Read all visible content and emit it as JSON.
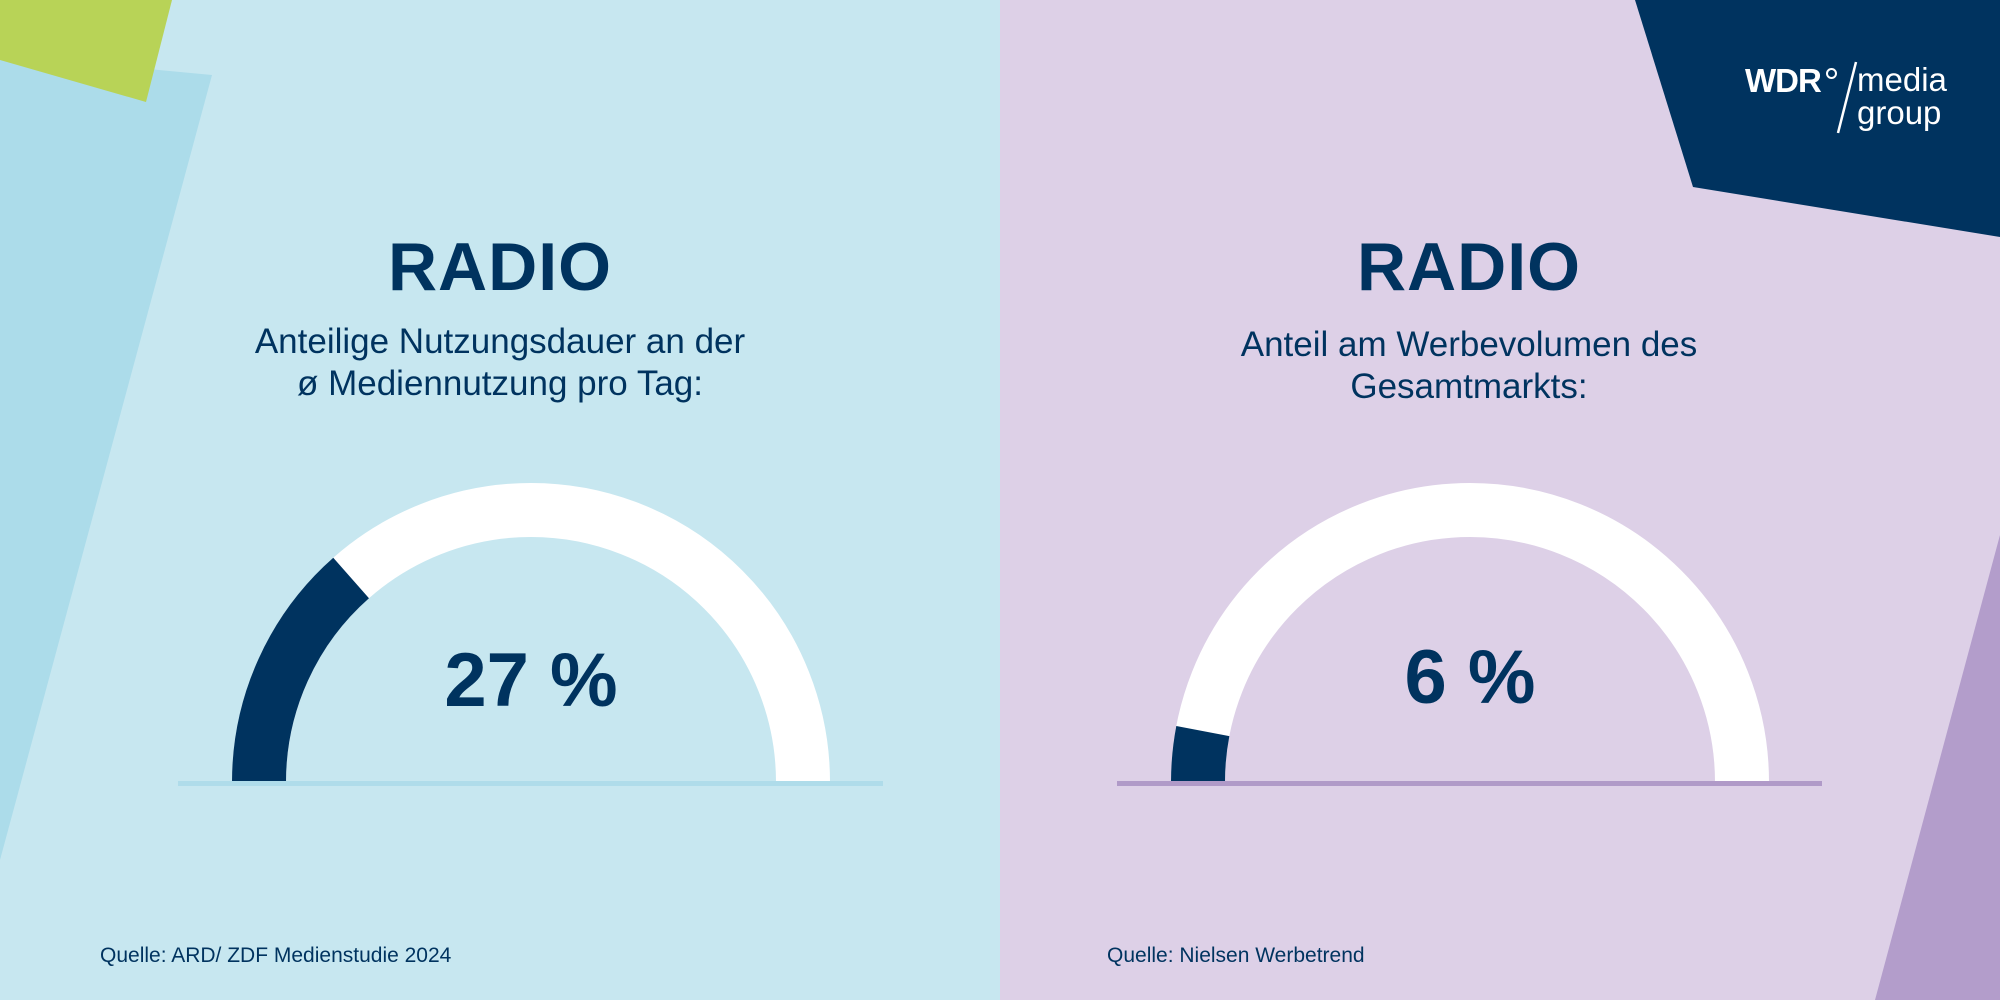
{
  "colors": {
    "left_bg": "#c7e7f0",
    "right_bg": "#ddd0e7",
    "navy": "#00335f",
    "track": "#ffffff",
    "left_baseline": "#afdcea",
    "right_baseline": "#b09ac8",
    "lime": "#b8d357",
    "left_stripe": "#acdcea",
    "right_stripe": "#b39dcb"
  },
  "logo": {
    "brand": "WDR",
    "line1": "media",
    "line2": "group"
  },
  "chart_data": [
    {
      "type": "gauge",
      "title": "RADIO",
      "subtitle_line1": "Anteilige Nutzungsdauer an der",
      "subtitle_line2": "ø Mediennutzung pro Tag:",
      "value": 27,
      "max": 100,
      "value_label": "27 %",
      "source": "Quelle: ARD/ ZDF Medienstudie 2024"
    },
    {
      "type": "gauge",
      "title": "RADIO",
      "subtitle_line1": "Anteil am Werbevolumen des",
      "subtitle_line2": "Gesamtmarkts:",
      "value": 6,
      "max": 100,
      "value_label": "6 %",
      "source": "Quelle: Nielsen Werbetrend"
    }
  ]
}
